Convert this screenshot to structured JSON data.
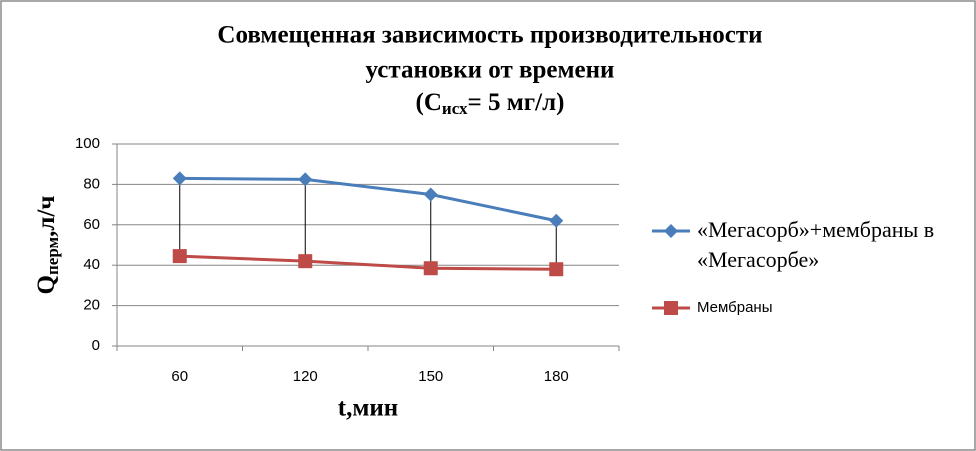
{
  "chart_data": {
    "type": "line",
    "title": [
      "Совмещенная зависимость производительности",
      "установки от времени"
    ],
    "title_condition": [
      "(C",
      "исх",
      "= 5 мг/л)"
    ],
    "x_label": "t,мин",
    "y_label": [
      "Q",
      "перм",
      ",л/ч"
    ],
    "categories": [
      "60",
      "120",
      "150",
      "180"
    ],
    "series": [
      {
        "name": "«Мегасорб»+мембраны в «Мегасорбе»",
        "color": "#4a7ebb",
        "marker": "diamond",
        "values": [
          83,
          82.5,
          75,
          62
        ]
      },
      {
        "name": "Мембраны",
        "color": "#be4b48",
        "marker": "square",
        "values": [
          44.5,
          42,
          38.5,
          38
        ]
      }
    ],
    "ylim": [
      0,
      100
    ],
    "yticks": [
      0,
      20,
      40,
      60,
      80,
      100
    ],
    "grid": true,
    "drop_lines": true,
    "legend": "right"
  }
}
